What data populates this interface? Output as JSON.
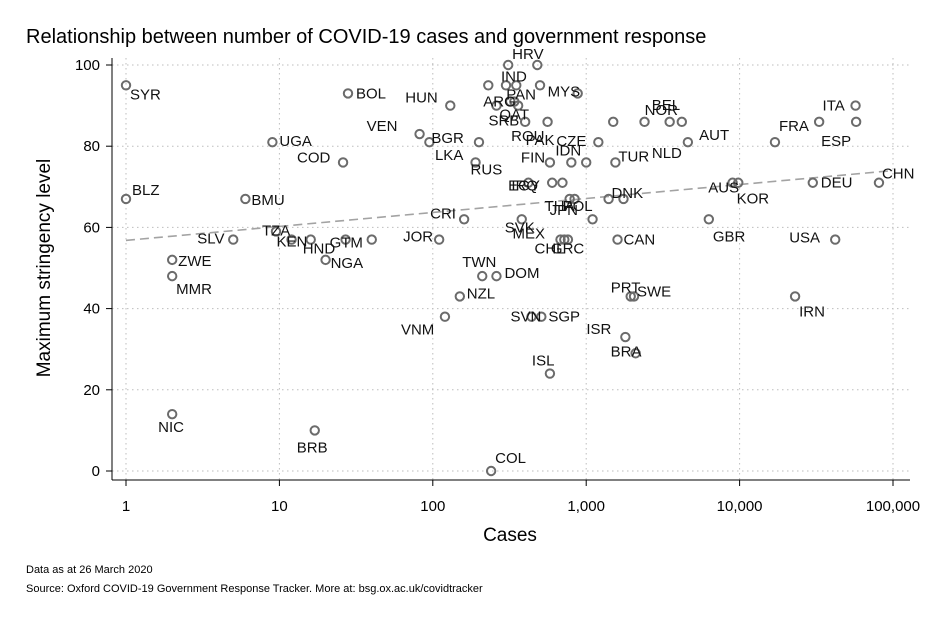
{
  "chart_data": {
    "type": "scatter",
    "title": "Relationship between number of COVID-19 cases and government response",
    "xlabel": "Cases",
    "ylabel": "Maximum stringency level",
    "x_scale": "log",
    "xlim": [
      1,
      100000
    ],
    "ylim": [
      0,
      100
    ],
    "x_ticks": [
      1,
      10,
      100,
      1000,
      10000,
      100000
    ],
    "x_tick_labels": [
      "1",
      "10",
      "100",
      "1,000",
      "10,000",
      "100,000"
    ],
    "y_ticks": [
      0,
      20,
      40,
      60,
      80,
      100
    ],
    "y_tick_labels": [
      "0",
      "20",
      "40",
      "60",
      "80",
      "100"
    ],
    "grid": true,
    "fit_line": {
      "type": "linear-on-log-x",
      "points": [
        [
          1,
          56.8
        ],
        [
          100000,
          74
        ]
      ]
    },
    "points": [
      {
        "x": 1,
        "y": 95,
        "label": "SYR"
      },
      {
        "x": 1,
        "y": 67,
        "label": "BLZ"
      },
      {
        "x": 2,
        "y": 52,
        "label": "ZWE"
      },
      {
        "x": 2,
        "y": 48,
        "label": "MMR"
      },
      {
        "x": 2,
        "y": 14,
        "label": "NIC"
      },
      {
        "x": 5,
        "y": 57,
        "label": "SLV"
      },
      {
        "x": 6,
        "y": 67,
        "label": "BMU"
      },
      {
        "x": 9,
        "y": 81,
        "label": "UGA"
      },
      {
        "x": 9.5,
        "y": 59,
        "label": "TZA"
      },
      {
        "x": 12,
        "y": 57,
        "label": "KEN"
      },
      {
        "x": 16,
        "y": 57,
        "label": "HND"
      },
      {
        "x": 17,
        "y": 10,
        "label": "BRB"
      },
      {
        "x": 20,
        "y": 52,
        "label": "NGA"
      },
      {
        "x": 27,
        "y": 57,
        "label": "GTM"
      },
      {
        "x": 26,
        "y": 76,
        "label": "COD"
      },
      {
        "x": 28,
        "y": 93,
        "label": "BOL"
      },
      {
        "x": 40,
        "y": 57,
        "label": ""
      },
      {
        "x": 82,
        "y": 83,
        "label": "VEN"
      },
      {
        "x": 95,
        "y": 81,
        "label": "BGR"
      },
      {
        "x": 110,
        "y": 57,
        "label": "JOR"
      },
      {
        "x": 130,
        "y": 90,
        "label": "HUN"
      },
      {
        "x": 160,
        "y": 62,
        "label": "CRI"
      },
      {
        "x": 150,
        "y": 43,
        "label": "NZL"
      },
      {
        "x": 120,
        "y": 38,
        "label": "VNM"
      },
      {
        "x": 190,
        "y": 76,
        "label": "RUS"
      },
      {
        "x": 200,
        "y": 81,
        "label": "LKA"
      },
      {
        "x": 210,
        "y": 48,
        "label": "TWN"
      },
      {
        "x": 230,
        "y": 95,
        "label": "ARG"
      },
      {
        "x": 240,
        "y": 0,
        "label": "COL"
      },
      {
        "x": 260,
        "y": 48,
        "label": "DOM"
      },
      {
        "x": 260,
        "y": 90,
        "label": "SRB"
      },
      {
        "x": 300,
        "y": 95,
        "label": "IND"
      },
      {
        "x": 310,
        "y": 100,
        "label": "HRV"
      },
      {
        "x": 320,
        "y": 91,
        "label": "PAN"
      },
      {
        "x": 340,
        "y": 91,
        "label": "QAT"
      },
      {
        "x": 350,
        "y": 95,
        "label": ""
      },
      {
        "x": 360,
        "y": 90,
        "label": ""
      },
      {
        "x": 380,
        "y": 62,
        "label": "SVK"
      },
      {
        "x": 400,
        "y": 86,
        "label": "ROU"
      },
      {
        "x": 420,
        "y": 71,
        "label": "IRQ"
      },
      {
        "x": 440,
        "y": 38,
        "label": "SVN"
      },
      {
        "x": 480,
        "y": 100,
        "label": ""
      },
      {
        "x": 500,
        "y": 95,
        "label": ""
      },
      {
        "x": 510,
        "y": 38,
        "label": "SGP"
      },
      {
        "x": 560,
        "y": 86,
        "label": "PAK"
      },
      {
        "x": 580,
        "y": 76,
        "label": "FIN"
      },
      {
        "x": 580,
        "y": 24,
        "label": "ISL"
      },
      {
        "x": 600,
        "y": 71,
        "label": "EGY"
      },
      {
        "x": 680,
        "y": 57,
        "label": "CHL"
      },
      {
        "x": 700,
        "y": 71,
        "label": ""
      },
      {
        "x": 720,
        "y": 57,
        "label": ""
      },
      {
        "x": 760,
        "y": 57,
        "label": "GRC"
      },
      {
        "x": 780,
        "y": 67,
        "label": "JPN"
      },
      {
        "x": 800,
        "y": 76,
        "label": "IDN"
      },
      {
        "x": 840,
        "y": 67,
        "label": "THA"
      },
      {
        "x": 880,
        "y": 93,
        "label": "MYS"
      },
      {
        "x": 1000,
        "y": 76,
        "label": ""
      },
      {
        "x": 1100,
        "y": 62,
        "label": "MEX"
      },
      {
        "x": 1200,
        "y": 81,
        "label": "CZE"
      },
      {
        "x": 1400,
        "y": 67,
        "label": "POL"
      },
      {
        "x": 1500,
        "y": 86,
        "label": ""
      },
      {
        "x": 1550,
        "y": 76,
        "label": "TUR"
      },
      {
        "x": 1600,
        "y": 57,
        "label": "CAN"
      },
      {
        "x": 1750,
        "y": 67,
        "label": "DNK"
      },
      {
        "x": 1800,
        "y": 33,
        "label": "ISR"
      },
      {
        "x": 1950,
        "y": 43,
        "label": "PRT"
      },
      {
        "x": 2050,
        "y": 43,
        "label": "SWE"
      },
      {
        "x": 2100,
        "y": 29,
        "label": "BRA"
      },
      {
        "x": 2400,
        "y": 86,
        "label": ""
      },
      {
        "x": 3500,
        "y": 86,
        "label": "NOR"
      },
      {
        "x": 4200,
        "y": 86,
        "label": "BEL"
      },
      {
        "x": 4600,
        "y": 81,
        "label": "NLD"
      },
      {
        "x": 6300,
        "y": 62,
        "label": "GBR"
      },
      {
        "x": 9000,
        "y": 71,
        "label": "KOR"
      },
      {
        "x": 9800,
        "y": 71,
        "label": "AUS"
      },
      {
        "x": 17000,
        "y": 81,
        "label": "FRA"
      },
      {
        "x": 23000,
        "y": 43,
        "label": "IRN"
      },
      {
        "x": 30000,
        "y": 71,
        "label": "DEU"
      },
      {
        "x": 33000,
        "y": 86,
        "label": "AUT"
      },
      {
        "x": 42000,
        "y": 57,
        "label": "USA"
      },
      {
        "x": 57000,
        "y": 90,
        "label": "ITA"
      },
      {
        "x": 57500,
        "y": 86,
        "label": "ESP"
      },
      {
        "x": 81000,
        "y": 71,
        "label": "CHN"
      }
    ]
  },
  "footnotes": {
    "date_note": "Data as at 26 March 2020",
    "source_note": "Source: Oxford COVID-19 Government Response Tracker. More at: bsg.ox.ac.uk/covidtracker"
  }
}
